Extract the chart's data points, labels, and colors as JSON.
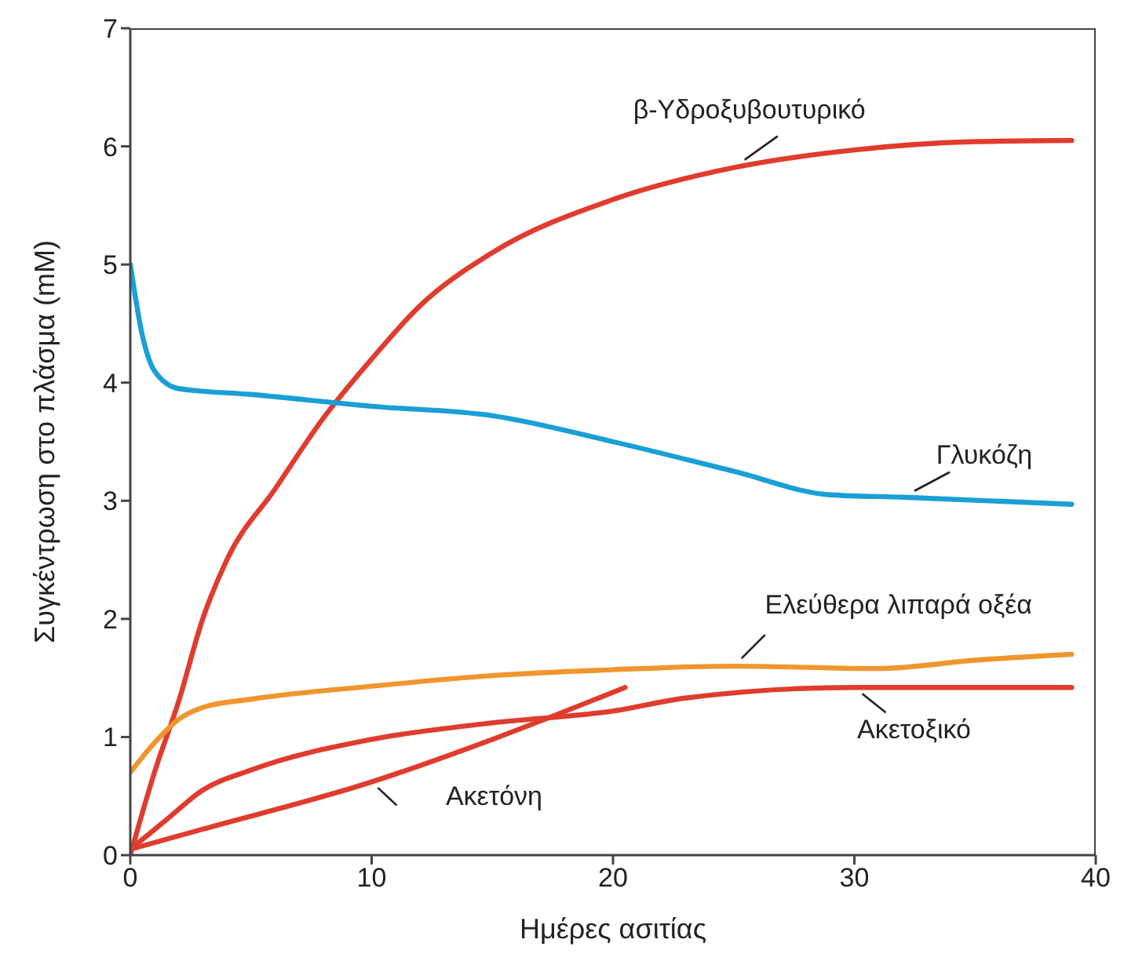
{
  "chart_data": {
    "type": "line",
    "xlabel": "Ημέρες ασιτίας",
    "ylabel": "Συγκέντρωση στο πλάσμα (mM)",
    "xlim": [
      0,
      40
    ],
    "xticks": [
      0,
      10,
      20,
      30,
      40
    ],
    "ylim": [
      0,
      7
    ],
    "yticks": [
      0,
      1,
      2,
      3,
      4,
      5,
      6,
      7
    ],
    "grid": false,
    "legend": false,
    "marker": "none",
    "line_style": "solid",
    "series": [
      {
        "name": "β-Υδροξυβουτυρικό",
        "color": "#e03c2e",
        "x": [
          0,
          1,
          2,
          3,
          4,
          6,
          8,
          10,
          12,
          15,
          20,
          25,
          30,
          35,
          39
        ],
        "values": [
          0,
          0.7,
          1.3,
          2.0,
          2.5,
          3.1,
          3.7,
          4.2,
          4.65,
          5.1,
          5.55,
          5.82,
          5.97,
          6.04,
          6.05
        ]
      },
      {
        "name": "Γλυκόζη",
        "color": "#1a9fd6",
        "x": [
          0,
          0.5,
          1,
          2,
          5,
          10,
          15,
          20,
          25,
          29,
          32,
          39
        ],
        "values": [
          5.0,
          4.4,
          4.1,
          3.95,
          3.9,
          3.8,
          3.72,
          3.5,
          3.25,
          3.05,
          3.03,
          2.97
        ]
      },
      {
        "name": "Ελεύθερα λιπαρά οξέα",
        "color": "#f0962e",
        "x": [
          0,
          1,
          2,
          3,
          5,
          10,
          15,
          20,
          25,
          31,
          35,
          39
        ],
        "values": [
          0.7,
          0.95,
          1.15,
          1.25,
          1.32,
          1.43,
          1.52,
          1.57,
          1.6,
          1.58,
          1.65,
          1.7
        ]
      },
      {
        "name": "Ακετοξικό",
        "color": "#e03c2e",
        "x": [
          0,
          1.5,
          3,
          5,
          10,
          15,
          20,
          23,
          30,
          39
        ],
        "values": [
          0.05,
          0.3,
          0.55,
          0.72,
          0.98,
          1.12,
          1.22,
          1.33,
          1.42,
          1.42
        ]
      },
      {
        "name": "Ακετόνη",
        "color": "#e03c2e",
        "x": [
          0,
          3,
          10,
          15,
          20.5
        ],
        "values": [
          0.05,
          0.22,
          0.62,
          0.98,
          1.42
        ]
      }
    ]
  }
}
